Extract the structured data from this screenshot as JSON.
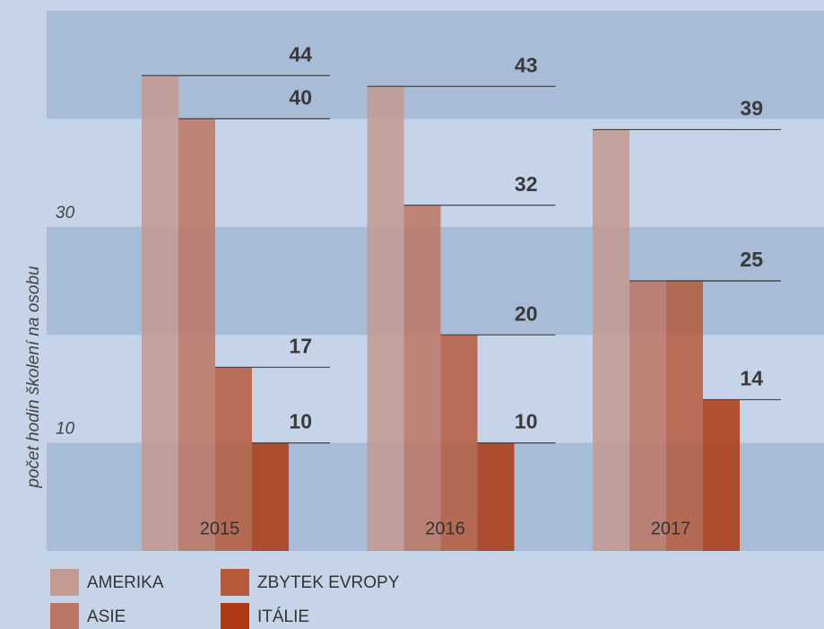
{
  "chart_data": {
    "type": "bar",
    "y_axis_label": "počet hodin školení na osobu",
    "categories": [
      "2015",
      "2016",
      "2017"
    ],
    "series": [
      {
        "name": "AMERIKA",
        "color": "#c39a92",
        "values": [
          44,
          43,
          39
        ]
      },
      {
        "name": "ASIE",
        "color": "#bc7564",
        "values": [
          40,
          32,
          25
        ]
      },
      {
        "name": "ZBYTEK EVROPY",
        "color": "#b65a3c",
        "values": [
          17,
          20,
          25
        ]
      },
      {
        "name": "ITÁLIE",
        "color": "#ad3a12",
        "values": [
          10,
          10,
          14
        ]
      }
    ],
    "ylim": [
      0,
      50
    ],
    "yticks": [
      10,
      30
    ]
  }
}
